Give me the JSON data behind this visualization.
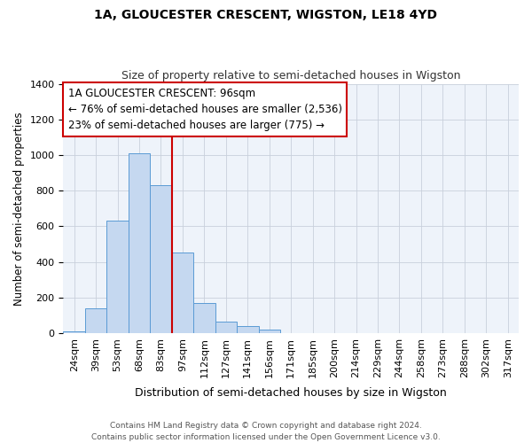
{
  "title": "1A, GLOUCESTER CRESCENT, WIGSTON, LE18 4YD",
  "subtitle": "Size of property relative to semi-detached houses in Wigston",
  "xlabel": "Distribution of semi-detached houses by size in Wigston",
  "ylabel": "Number of semi-detached properties",
  "categories": [
    "24sqm",
    "39sqm",
    "53sqm",
    "68sqm",
    "83sqm",
    "97sqm",
    "112sqm",
    "127sqm",
    "141sqm",
    "156sqm",
    "171sqm",
    "185sqm",
    "200sqm",
    "214sqm",
    "229sqm",
    "244sqm",
    "258sqm",
    "273sqm",
    "288sqm",
    "302sqm",
    "317sqm"
  ],
  "values": [
    10,
    140,
    630,
    1010,
    830,
    450,
    170,
    65,
    40,
    20,
    0,
    0,
    0,
    0,
    0,
    0,
    0,
    0,
    0,
    0,
    0
  ],
  "bar_color": "#c5d8f0",
  "bar_edge_color": "#5b9bd5",
  "annotation_line1": "1A GLOUCESTER CRESCENT: 96sqm",
  "annotation_line2": "← 76% of semi-detached houses are smaller (2,536)",
  "annotation_line3": "23% of semi-detached houses are larger (775) →",
  "vline_color": "#cc0000",
  "vline_x_index": 5,
  "ylim": [
    0,
    1400
  ],
  "yticks": [
    0,
    200,
    400,
    600,
    800,
    1000,
    1200,
    1400
  ],
  "grid_color": "#c8d0dc",
  "bg_color": "#eef3fa",
  "footer_line1": "Contains HM Land Registry data © Crown copyright and database right 2024.",
  "footer_line2": "Contains public sector information licensed under the Open Government Licence v3.0.",
  "title_fontsize": 10,
  "subtitle_fontsize": 9,
  "xlabel_fontsize": 9,
  "ylabel_fontsize": 8.5,
  "tick_fontsize": 8,
  "ann_fontsize": 8.5,
  "footer_fontsize": 6.5
}
